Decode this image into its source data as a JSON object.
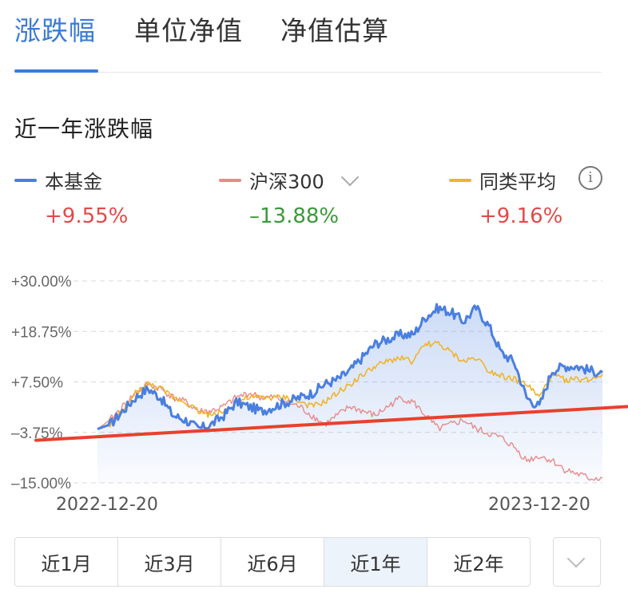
{
  "tabs": [
    {
      "label": "涨跌幅",
      "active": true
    },
    {
      "label": "单位净值",
      "active": false
    },
    {
      "label": "净值估算",
      "active": false
    }
  ],
  "section_title": "近一年涨跌幅",
  "legend": [
    {
      "name": "本基金",
      "value": "+9.55%",
      "color": "#4a7fe0",
      "value_color": "#e24a4a"
    },
    {
      "name": "沪深300",
      "value": "–13.88%",
      "color": "#e88a8a",
      "value_color": "#3a9a3a",
      "icon": "chevron-down-icon"
    },
    {
      "name": "同类平均",
      "value": "+9.16%",
      "color": "#f0b429",
      "value_color": "#e24a4a",
      "icon": "info-icon"
    }
  ],
  "info_glyph": "i",
  "chart_data": {
    "type": "line",
    "y_tick_labels": [
      "+30.00%",
      "+18.75%",
      "+7.50%",
      "–3.75%",
      "–15.00%"
    ],
    "y_ticks": [
      30,
      18.75,
      7.5,
      -3.75,
      -15
    ],
    "ylim": [
      -15,
      30
    ],
    "x_start_label": "2022-12-20",
    "x_end_label": "2023-12-20",
    "grid": true,
    "series": [
      {
        "name": "本基金",
        "color": "#4a7fe0",
        "values": [
          -3,
          -2,
          1,
          4,
          6,
          4,
          0,
          -1,
          -3,
          -2,
          0,
          3,
          2,
          1,
          2,
          3,
          4,
          5,
          7,
          8,
          10,
          13,
          16,
          17,
          18,
          18,
          22,
          24,
          23,
          21,
          24,
          20,
          14,
          12,
          4,
          2,
          10,
          11,
          11,
          10,
          9.6
        ]
      },
      {
        "name": "沪深300",
        "color": "#e88a8a",
        "values": [
          -3,
          -1,
          2,
          5,
          7,
          6,
          4,
          3,
          1,
          1,
          2,
          4,
          5,
          4,
          4,
          3,
          2,
          0,
          -2,
          0,
          2,
          1,
          0,
          2,
          4,
          3,
          0,
          -3,
          -2,
          -1,
          -3,
          -4,
          -5,
          -7,
          -10,
          -9,
          -10,
          -12,
          -13,
          -14,
          -13.9
        ]
      },
      {
        "name": "同类平均",
        "color": "#f0b429",
        "values": [
          -3,
          -2,
          1,
          5,
          7,
          6,
          4,
          3,
          1,
          0,
          1,
          3,
          4,
          4,
          4,
          4,
          3,
          2,
          3,
          5,
          7,
          9,
          11,
          12,
          13,
          12,
          16,
          16,
          14,
          12,
          13,
          10,
          9,
          8,
          7,
          4,
          9,
          8,
          8,
          8,
          9.2
        ]
      }
    ],
    "trend_line": {
      "color": "#e8412c",
      "from": -5.5,
      "to": 2
    }
  },
  "ranges": [
    {
      "label": "近1月",
      "active": false
    },
    {
      "label": "近3月",
      "active": false
    },
    {
      "label": "近6月",
      "active": false
    },
    {
      "label": "近1年",
      "active": true
    },
    {
      "label": "近2年",
      "active": false
    }
  ]
}
